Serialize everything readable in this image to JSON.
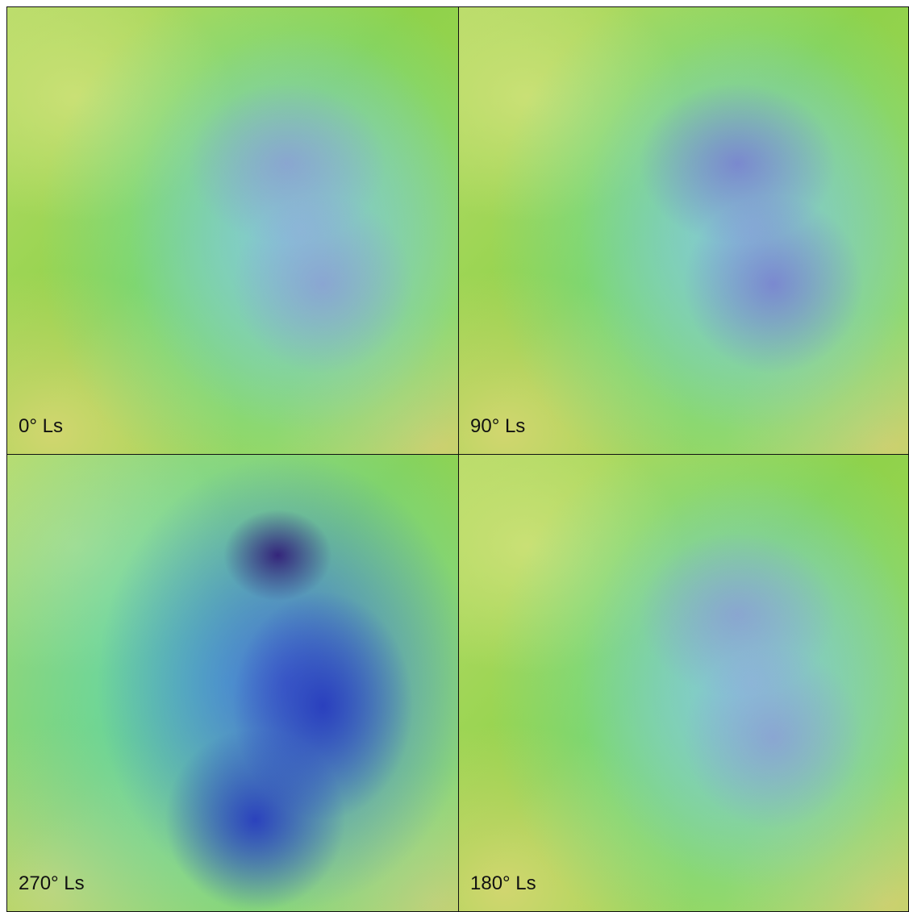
{
  "panels": [
    {
      "label": "0° Ls"
    },
    {
      "label": "90° Ls"
    },
    {
      "label": "270° Ls"
    },
    {
      "label": "180° Ls"
    }
  ]
}
